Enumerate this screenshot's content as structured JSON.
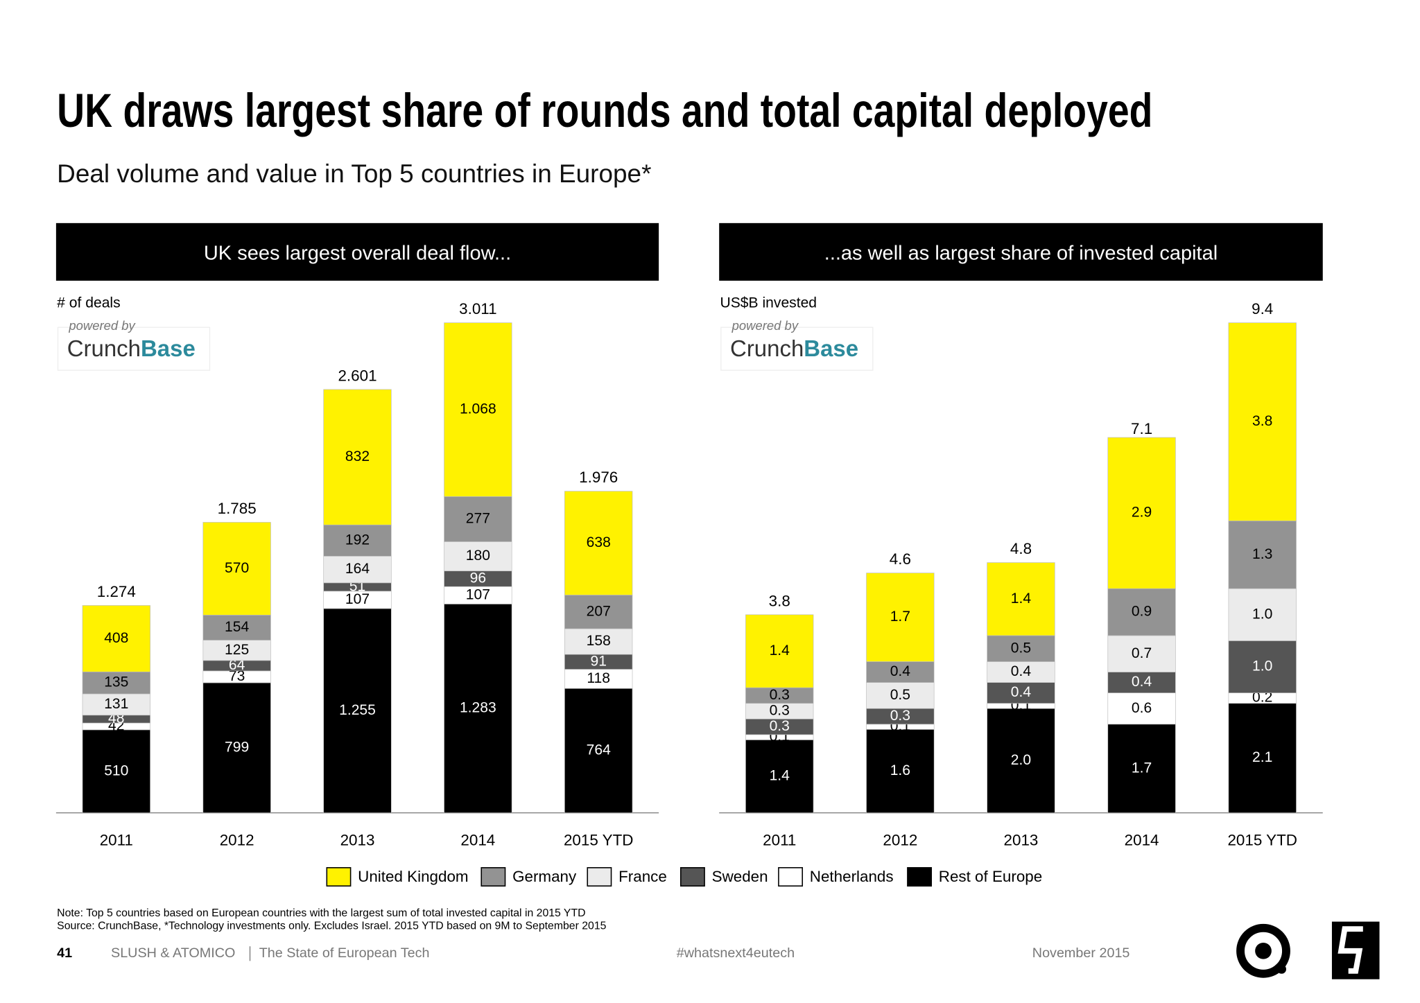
{
  "title": "UK draws largest share of rounds and total capital deployed",
  "subtitle": "Deal volume and value in Top 5 countries in Europe*",
  "chart_data": [
    {
      "type": "bar",
      "stacked": true,
      "title": "UK sees largest overall deal flow...",
      "y_label": "# of deals",
      "logo": {
        "caption": "powered by",
        "parts": [
          "Crunch",
          "Base"
        ]
      },
      "categories": [
        "2011",
        "2012",
        "2013",
        "2014",
        "2015 YTD"
      ],
      "series": [
        {
          "name": "United Kingdom",
          "color": "#fff200",
          "values": [
            408,
            570,
            832,
            1068,
            638
          ],
          "value_labels": [
            "408",
            "570",
            "832",
            "1.068",
            "638"
          ]
        },
        {
          "name": "Germany",
          "color": "#939393",
          "values": [
            135,
            154,
            192,
            277,
            207
          ],
          "value_labels": [
            "135",
            "154",
            "192",
            "277",
            "207"
          ]
        },
        {
          "name": "France",
          "color": "#ebebeb",
          "values": [
            131,
            125,
            164,
            180,
            158
          ],
          "value_labels": [
            "131",
            "125",
            "164",
            "180",
            "158"
          ]
        },
        {
          "name": "Sweden",
          "color": "#555555",
          "values": [
            48,
            64,
            51,
            96,
            91
          ],
          "value_labels": [
            "48",
            "64",
            "51",
            "96",
            "91"
          ]
        },
        {
          "name": "Netherlands",
          "color": "#ffffff",
          "values": [
            42,
            73,
            107,
            107,
            118
          ],
          "value_labels": [
            "42",
            "73",
            "107",
            "107",
            "118"
          ]
        },
        {
          "name": "Rest of Europe",
          "color": "#000000",
          "values": [
            510,
            799,
            1255,
            1283,
            764
          ],
          "value_labels": [
            "510",
            "799",
            "1.255",
            "1.283",
            "764"
          ]
        }
      ],
      "totals": {
        "values": [
          1274,
          1785,
          2601,
          3011,
          1976
        ],
        "value_labels": [
          "1.274",
          "1.785",
          "2.601",
          "3.011",
          "1.976"
        ]
      }
    },
    {
      "type": "bar",
      "stacked": true,
      "title": "...as well as largest share of invested capital",
      "y_label": "US$B invested",
      "logo": {
        "caption": "powered by",
        "parts": [
          "Crunch",
          "Base"
        ]
      },
      "categories": [
        "2011",
        "2012",
        "2013",
        "2014",
        "2015 YTD"
      ],
      "series": [
        {
          "name": "United Kingdom",
          "color": "#fff200",
          "values": [
            1.4,
            1.7,
            1.4,
            2.9,
            3.8
          ],
          "value_labels": [
            "1.4",
            "1.7",
            "1.4",
            "2.9",
            "3.8"
          ]
        },
        {
          "name": "Germany",
          "color": "#939393",
          "values": [
            0.3,
            0.4,
            0.5,
            0.9,
            1.3
          ],
          "value_labels": [
            "0.3",
            "0.4",
            "0.5",
            "0.9",
            "1.3"
          ]
        },
        {
          "name": "France",
          "color": "#ebebeb",
          "values": [
            0.3,
            0.5,
            0.4,
            0.7,
            1
          ],
          "value_labels": [
            "0.3",
            "0.5",
            "0.4",
            "0.7",
            "1.0"
          ]
        },
        {
          "name": "Sweden",
          "color": "#555555",
          "values": [
            0.3,
            0.3,
            0.4,
            0.4,
            1
          ],
          "value_labels": [
            "0.3",
            "0.3",
            "0.4",
            "0.4",
            "1.0"
          ]
        },
        {
          "name": "Netherlands",
          "color": "#ffffff",
          "values": [
            0.1,
            0.1,
            0.1,
            0.6,
            0.2
          ],
          "value_labels": [
            "0.1",
            "0.1",
            "0.1",
            "0.6",
            "0.2"
          ]
        },
        {
          "name": "Rest of Europe",
          "color": "#000000",
          "values": [
            1.4,
            1.6,
            2,
            1.7,
            2.1
          ],
          "value_labels": [
            "1.4",
            "1.6",
            "2.0",
            "1.7",
            "2.1"
          ]
        }
      ],
      "totals": {
        "values": [
          3.8,
          4.6,
          4.8,
          7.1,
          9.4
        ],
        "value_labels": [
          "3.8",
          "4.6",
          "4.8",
          "7.1",
          "9.4"
        ]
      }
    }
  ],
  "notes": [
    "Note: Top 5 countries based on European countries with the largest sum of total invested capital in 2015 YTD",
    "Source: CrunchBase, *Technology investments only. Excludes Israel. 2015 YTD based on 9M to September 2015"
  ],
  "footer": {
    "page": "41",
    "brand": "SLUSH & ATOMICO",
    "report": "The State of European Tech",
    "hashtag": "#whatsnext4eutech",
    "date": "November 2015"
  }
}
